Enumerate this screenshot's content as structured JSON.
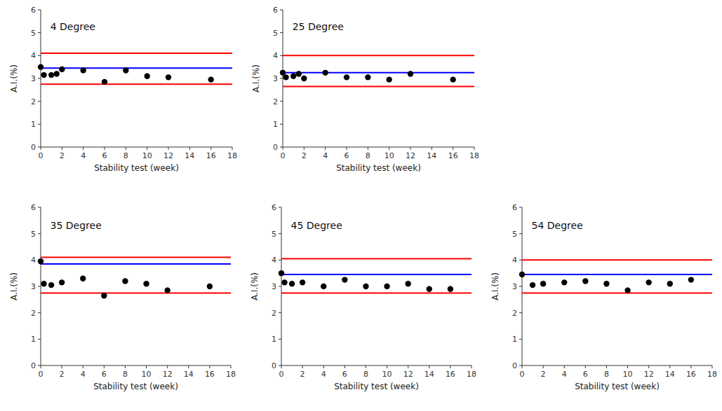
{
  "chart_data": [
    {
      "type": "scatter",
      "title": "4 Degree",
      "xlabel": "Stability test (week)",
      "ylabel": "A.I.(%)",
      "x": [
        0,
        0.3,
        1,
        1.5,
        2,
        4,
        6,
        8,
        10,
        12,
        16
      ],
      "values": [
        3.5,
        3.15,
        3.15,
        3.2,
        3.4,
        3.35,
        2.85,
        3.35,
        3.1,
        3.05,
        2.95
      ],
      "color": "#000000",
      "hlines": [
        {
          "value": 3.45,
          "color": "#0000FF"
        },
        {
          "value": 4.1,
          "color": "#FF0000"
        },
        {
          "value": 2.75,
          "color": "#FF0000"
        }
      ],
      "xlim": [
        0,
        18
      ],
      "xticks": [
        0,
        2,
        4,
        6,
        8,
        10,
        12,
        14,
        16,
        18
      ],
      "ylim": [
        0,
        6
      ],
      "yticks": [
        0,
        1,
        2,
        3,
        4,
        5,
        6
      ],
      "grid": false
    },
    {
      "type": "scatter",
      "title": "25 Degree",
      "xlabel": "Stability test (week)",
      "ylabel": "A.I.(%)",
      "x": [
        0,
        0.3,
        1,
        1.5,
        2,
        4,
        6,
        8,
        10,
        12,
        16
      ],
      "values": [
        3.25,
        3.05,
        3.1,
        3.2,
        3.0,
        3.25,
        3.05,
        3.05,
        2.95,
        3.2,
        2.95
      ],
      "color": "#000000",
      "hlines": [
        {
          "value": 3.25,
          "color": "#0000FF"
        },
        {
          "value": 4.0,
          "color": "#FF0000"
        },
        {
          "value": 2.65,
          "color": "#FF0000"
        }
      ],
      "xlim": [
        0,
        18
      ],
      "xticks": [
        0,
        2,
        4,
        6,
        8,
        10,
        12,
        14,
        16,
        18
      ],
      "ylim": [
        0,
        6
      ],
      "yticks": [
        0,
        1,
        2,
        3,
        4,
        5,
        6
      ],
      "grid": false
    },
    {
      "type": "scatter",
      "title": "35 Degree",
      "xlabel": "Stability test (week)",
      "ylabel": "A.I.(%)",
      "x": [
        0,
        0.3,
        1,
        2,
        4,
        6,
        8,
        10,
        12,
        16
      ],
      "values": [
        3.95,
        3.1,
        3.05,
        3.15,
        3.3,
        2.65,
        3.2,
        3.1,
        2.85,
        3.0
      ],
      "color": "#000000",
      "hlines": [
        {
          "value": 3.85,
          "color": "#0000FF"
        },
        {
          "value": 4.1,
          "color": "#FF0000"
        },
        {
          "value": 2.75,
          "color": "#FF0000"
        }
      ],
      "xlim": [
        0,
        18
      ],
      "xticks": [
        0,
        2,
        4,
        6,
        8,
        10,
        12,
        14,
        16,
        18
      ],
      "ylim": [
        0,
        6
      ],
      "yticks": [
        0,
        1,
        2,
        3,
        4,
        5,
        6
      ],
      "grid": false
    },
    {
      "type": "scatter",
      "title": "45 Degree",
      "xlabel": "Stability test (week)",
      "ylabel": "A.I.(%)",
      "x": [
        0,
        0.3,
        1,
        2,
        4,
        6,
        8,
        10,
        12,
        14,
        16
      ],
      "values": [
        3.5,
        3.15,
        3.1,
        3.15,
        3.0,
        3.25,
        3.0,
        3.0,
        3.1,
        2.9,
        2.9
      ],
      "color": "#000000",
      "hlines": [
        {
          "value": 3.45,
          "color": "#0000FF"
        },
        {
          "value": 4.05,
          "color": "#FF0000"
        },
        {
          "value": 2.75,
          "color": "#FF0000"
        }
      ],
      "xlim": [
        0,
        18
      ],
      "xticks": [
        0,
        2,
        4,
        6,
        8,
        10,
        12,
        14,
        16,
        18
      ],
      "ylim": [
        0,
        6
      ],
      "yticks": [
        0,
        1,
        2,
        3,
        4,
        5,
        6
      ],
      "grid": false
    },
    {
      "type": "scatter",
      "title": "54 Degree",
      "xlabel": "Stability test (week)",
      "ylabel": "A.I.(%)",
      "x": [
        0,
        1,
        2,
        4,
        6,
        8,
        10,
        12,
        14,
        16
      ],
      "values": [
        3.45,
        3.05,
        3.1,
        3.15,
        3.2,
        3.1,
        2.85,
        3.15,
        3.1,
        3.25
      ],
      "color": "#000000",
      "hlines": [
        {
          "value": 3.45,
          "color": "#0000FF"
        },
        {
          "value": 4.0,
          "color": "#FF0000"
        },
        {
          "value": 2.75,
          "color": "#FF0000"
        }
      ],
      "xlim": [
        0,
        18
      ],
      "xticks": [
        0,
        2,
        4,
        6,
        8,
        10,
        12,
        14,
        16,
        18
      ],
      "ylim": [
        0,
        6
      ],
      "yticks": [
        0,
        1,
        2,
        3,
        4,
        5,
        6
      ],
      "grid": false
    }
  ]
}
